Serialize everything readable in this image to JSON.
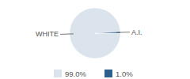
{
  "chart_data": {
    "type": "pie",
    "categories": [
      "WHITE",
      "A.I."
    ],
    "values": [
      99.0,
      1.0
    ],
    "value_labels": [
      "99.0%",
      "1.0%"
    ],
    "colors": [
      "#dbe3ec",
      "#2f5f8c"
    ],
    "legend": "bottom"
  }
}
